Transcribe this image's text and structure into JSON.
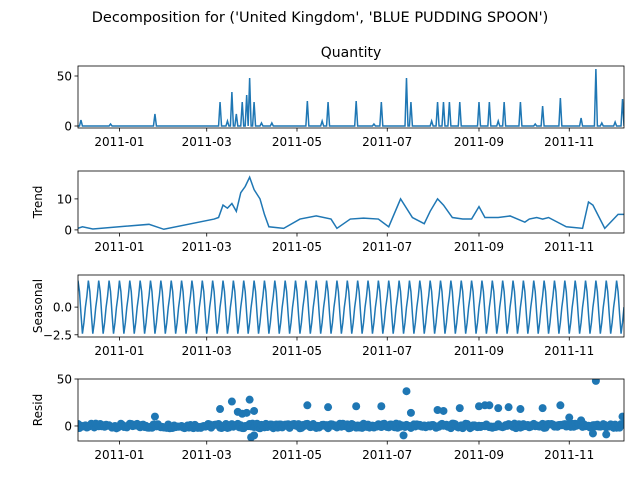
{
  "figure": {
    "suptitle": "Decomposition for ('United Kingdom', 'BLUE PUDDING SPOON')",
    "line_color": "#1f77b4",
    "marker_color": "#1f77b4"
  },
  "chart_data": [
    {
      "type": "line",
      "title": "Quantity",
      "ylabel": "",
      "ylim": [
        -2,
        60
      ],
      "yticks": [
        0,
        50
      ],
      "x_tick_labels": [
        "2011-01",
        "2011-03",
        "2011-05",
        "2011-07",
        "2011-09",
        "2011-11"
      ],
      "x_range": [
        "2010-12-04",
        "2011-12-08"
      ],
      "baseline": 0,
      "spikes": [
        {
          "date": "2010-12-06",
          "value": 6
        },
        {
          "date": "2010-12-26",
          "value": 2
        },
        {
          "date": "2011-01-25",
          "value": 12
        },
        {
          "date": "2011-03-10",
          "value": 24
        },
        {
          "date": "2011-03-15",
          "value": 5
        },
        {
          "date": "2011-03-18",
          "value": 34
        },
        {
          "date": "2011-03-21",
          "value": 12
        },
        {
          "date": "2011-03-25",
          "value": 24
        },
        {
          "date": "2011-03-28",
          "value": 31
        },
        {
          "date": "2011-03-30",
          "value": 48
        },
        {
          "date": "2011-04-02",
          "value": 24
        },
        {
          "date": "2011-04-07",
          "value": 3
        },
        {
          "date": "2011-04-14",
          "value": 3
        },
        {
          "date": "2011-05-08",
          "value": 25
        },
        {
          "date": "2011-05-18",
          "value": 5
        },
        {
          "date": "2011-05-22",
          "value": 24
        },
        {
          "date": "2011-06-10",
          "value": 25
        },
        {
          "date": "2011-06-22",
          "value": 2
        },
        {
          "date": "2011-06-27",
          "value": 24
        },
        {
          "date": "2011-07-14",
          "value": 48
        },
        {
          "date": "2011-07-17",
          "value": 24
        },
        {
          "date": "2011-07-31",
          "value": 5
        },
        {
          "date": "2011-08-04",
          "value": 24
        },
        {
          "date": "2011-08-08",
          "value": 24
        },
        {
          "date": "2011-08-12",
          "value": 24
        },
        {
          "date": "2011-08-19",
          "value": 24
        },
        {
          "date": "2011-09-01",
          "value": 24
        },
        {
          "date": "2011-09-08",
          "value": 24
        },
        {
          "date": "2011-09-14",
          "value": 5
        },
        {
          "date": "2011-09-18",
          "value": 24
        },
        {
          "date": "2011-09-29",
          "value": 24
        },
        {
          "date": "2011-10-09",
          "value": 2
        },
        {
          "date": "2011-10-14",
          "value": 20
        },
        {
          "date": "2011-10-26",
          "value": 28
        },
        {
          "date": "2011-11-09",
          "value": 8
        },
        {
          "date": "2011-11-19",
          "value": 57
        },
        {
          "date": "2011-11-23",
          "value": 3
        },
        {
          "date": "2011-12-02",
          "value": 4
        },
        {
          "date": "2011-12-07",
          "value": 27
        }
      ]
    },
    {
      "type": "line",
      "title": "",
      "ylabel": "Trend",
      "ylim": [
        -1,
        19
      ],
      "yticks": [
        0,
        10
      ],
      "x_tick_labels": [
        "2011-01",
        "2011-03",
        "2011-05",
        "2011-07",
        "2011-09",
        "2011-11"
      ],
      "x_range": [
        "2010-12-04",
        "2011-12-08"
      ],
      "steps": [
        {
          "date": "2010-12-04",
          "value": 0.5
        },
        {
          "date": "2010-12-07",
          "value": 1
        },
        {
          "date": "2010-12-14",
          "value": 0.3
        },
        {
          "date": "2011-01-21",
          "value": 1.8
        },
        {
          "date": "2011-01-31",
          "value": 0.2
        },
        {
          "date": "2011-03-06",
          "value": 3.5
        },
        {
          "date": "2011-03-09",
          "value": 4
        },
        {
          "date": "2011-03-12",
          "value": 8
        },
        {
          "date": "2011-03-15",
          "value": 7
        },
        {
          "date": "2011-03-18",
          "value": 8.5
        },
        {
          "date": "2011-03-21",
          "value": 6
        },
        {
          "date": "2011-03-24",
          "value": 12
        },
        {
          "date": "2011-03-27",
          "value": 14
        },
        {
          "date": "2011-03-30",
          "value": 17
        },
        {
          "date": "2011-04-02",
          "value": 13
        },
        {
          "date": "2011-04-06",
          "value": 10
        },
        {
          "date": "2011-04-09",
          "value": 5
        },
        {
          "date": "2011-04-12",
          "value": 1
        },
        {
          "date": "2011-04-22",
          "value": 0.5
        },
        {
          "date": "2011-05-03",
          "value": 3.5
        },
        {
          "date": "2011-05-14",
          "value": 4.5
        },
        {
          "date": "2011-05-24",
          "value": 3.5
        },
        {
          "date": "2011-05-28",
          "value": 0.5
        },
        {
          "date": "2011-06-06",
          "value": 3.5
        },
        {
          "date": "2011-06-15",
          "value": 3.8
        },
        {
          "date": "2011-06-25",
          "value": 3.5
        },
        {
          "date": "2011-07-02",
          "value": 1
        },
        {
          "date": "2011-07-10",
          "value": 10
        },
        {
          "date": "2011-07-18",
          "value": 4
        },
        {
          "date": "2011-07-26",
          "value": 2
        },
        {
          "date": "2011-07-30",
          "value": 6
        },
        {
          "date": "2011-08-04",
          "value": 10
        },
        {
          "date": "2011-08-08",
          "value": 8
        },
        {
          "date": "2011-08-14",
          "value": 4
        },
        {
          "date": "2011-08-21",
          "value": 3.5
        },
        {
          "date": "2011-08-27",
          "value": 3.5
        },
        {
          "date": "2011-09-01",
          "value": 7.5
        },
        {
          "date": "2011-09-05",
          "value": 4
        },
        {
          "date": "2011-09-14",
          "value": 4
        },
        {
          "date": "2011-09-22",
          "value": 4.5
        },
        {
          "date": "2011-10-02",
          "value": 2.5
        },
        {
          "date": "2011-10-05",
          "value": 3.5
        },
        {
          "date": "2011-10-10",
          "value": 4
        },
        {
          "date": "2011-10-14",
          "value": 3.5
        },
        {
          "date": "2011-10-18",
          "value": 4
        },
        {
          "date": "2011-10-30",
          "value": 1
        },
        {
          "date": "2011-11-10",
          "value": 0.5
        },
        {
          "date": "2011-11-14",
          "value": 9
        },
        {
          "date": "2011-11-17",
          "value": 8
        },
        {
          "date": "2011-11-25",
          "value": 0.5
        },
        {
          "date": "2011-12-04",
          "value": 5
        },
        {
          "date": "2011-12-08",
          "value": 5
        }
      ]
    },
    {
      "type": "line",
      "title": "",
      "ylabel": "Seasonal",
      "ylim": [
        -2.7,
        2.9
      ],
      "yticks": [
        -2.5,
        0.0
      ],
      "ytick_labels": [
        "−2.5",
        "0.0"
      ],
      "x_tick_labels": [
        "2011-01",
        "2011-03",
        "2011-05",
        "2011-07",
        "2011-09",
        "2011-11"
      ],
      "x_range": [
        "2010-12-04",
        "2011-12-08"
      ],
      "period_days": 7,
      "weekly_pattern": [
        2.4,
        1.4,
        -0.6,
        -2.4,
        -1.4,
        0.0,
        1.0
      ]
    },
    {
      "type": "scatter",
      "title": "",
      "ylabel": "Resid",
      "ylim": [
        -16,
        50
      ],
      "yticks": [
        0,
        50
      ],
      "x_tick_labels": [
        "2011-01",
        "2011-03",
        "2011-05",
        "2011-07",
        "2011-09",
        "2011-11"
      ],
      "x_range": [
        "2010-12-04",
        "2011-12-08"
      ],
      "zero_line": true,
      "outliers": [
        {
          "date": "2011-01-25",
          "value": 10
        },
        {
          "date": "2011-03-10",
          "value": 18
        },
        {
          "date": "2011-03-18",
          "value": 26
        },
        {
          "date": "2011-03-22",
          "value": 15
        },
        {
          "date": "2011-03-25",
          "value": 13
        },
        {
          "date": "2011-03-28",
          "value": 14
        },
        {
          "date": "2011-03-30",
          "value": 28
        },
        {
          "date": "2011-04-02",
          "value": 16
        },
        {
          "date": "2011-03-31",
          "value": -12
        },
        {
          "date": "2011-04-02",
          "value": -10
        },
        {
          "date": "2011-05-08",
          "value": 22
        },
        {
          "date": "2011-05-22",
          "value": 20
        },
        {
          "date": "2011-06-10",
          "value": 21
        },
        {
          "date": "2011-06-27",
          "value": 21
        },
        {
          "date": "2011-07-14",
          "value": 37
        },
        {
          "date": "2011-07-17",
          "value": 14
        },
        {
          "date": "2011-07-12",
          "value": -10
        },
        {
          "date": "2011-08-04",
          "value": 17
        },
        {
          "date": "2011-08-08",
          "value": 16
        },
        {
          "date": "2011-08-19",
          "value": 19
        },
        {
          "date": "2011-09-01",
          "value": 21
        },
        {
          "date": "2011-09-05",
          "value": 22
        },
        {
          "date": "2011-09-08",
          "value": 22
        },
        {
          "date": "2011-09-14",
          "value": 19
        },
        {
          "date": "2011-09-21",
          "value": 20
        },
        {
          "date": "2011-09-29",
          "value": 18
        },
        {
          "date": "2011-10-14",
          "value": 19
        },
        {
          "date": "2011-10-26",
          "value": 22
        },
        {
          "date": "2011-11-01",
          "value": 9
        },
        {
          "date": "2011-11-09",
          "value": 6
        },
        {
          "date": "2011-11-19",
          "value": 48
        },
        {
          "date": "2011-11-17",
          "value": -8
        },
        {
          "date": "2011-11-26",
          "value": -9
        },
        {
          "date": "2011-12-07",
          "value": 10
        }
      ]
    }
  ]
}
